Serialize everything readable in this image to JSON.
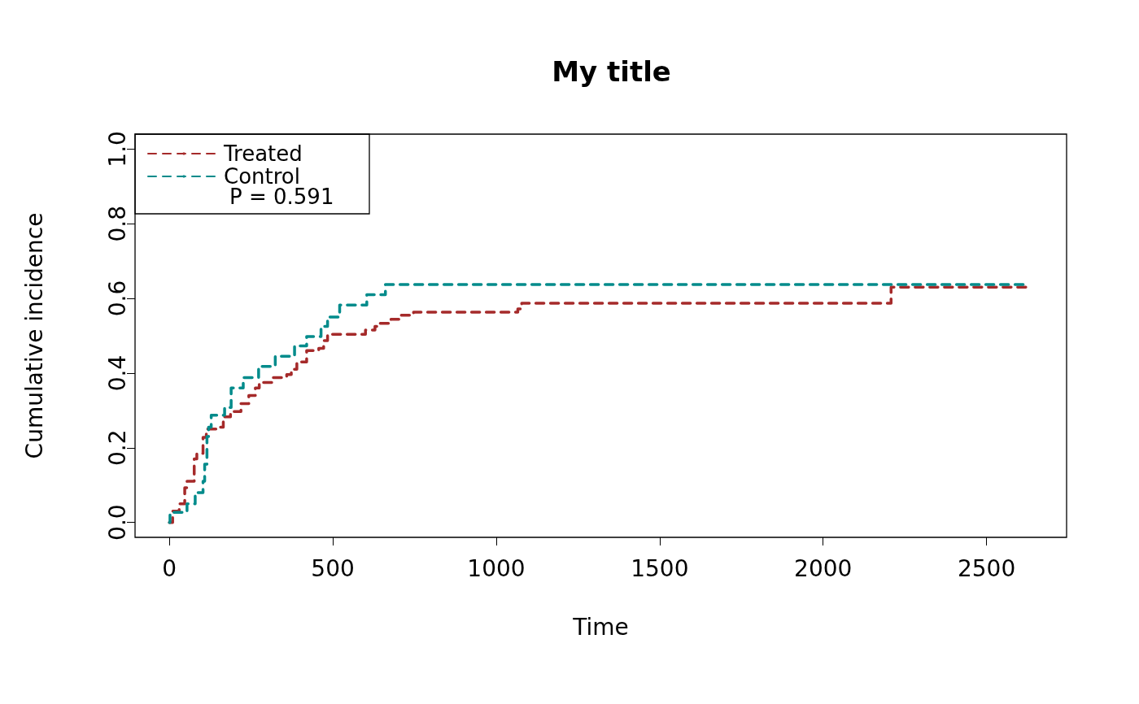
{
  "chart_data": {
    "type": "step",
    "title": "My title",
    "xlabel": "Time",
    "ylabel": "Cumulative incidence",
    "annotations": [
      "P = 0.591"
    ],
    "xlim": [
      -105,
      2745
    ],
    "xticks": [
      0,
      500,
      1000,
      1500,
      2000,
      2500
    ],
    "ylim": [
      -0.04,
      1.04
    ],
    "yticks": [
      {
        "value": 0,
        "label": "0.0"
      },
      {
        "value": 0.2,
        "label": "0.2"
      },
      {
        "value": 0.4,
        "label": "0.4"
      },
      {
        "value": 0.6,
        "label": "0.6"
      },
      {
        "value": 0.8,
        "label": "0.8"
      },
      {
        "value": 1,
        "label": "1.0"
      }
    ],
    "grid": false,
    "legend": "top left",
    "line_style": "dashed",
    "marker": "none",
    "series": [
      {
        "name": "Treated",
        "color": "#a52a2a",
        "x": [
          0,
          10,
          30,
          47,
          54,
          76,
          84,
          103,
          113,
          152,
          165,
          187,
          219,
          243,
          263,
          275,
          317,
          359,
          373,
          390,
          420,
          457,
          472,
          484,
          600,
          629,
          643,
          678,
          702,
          747,
          1066,
          1078,
          2208,
          2625
        ],
        "values": [
          0,
          0.03,
          0.05,
          0.093,
          0.11,
          0.17,
          0.185,
          0.228,
          0.25,
          0.255,
          0.283,
          0.297,
          0.318,
          0.34,
          0.36,
          0.375,
          0.388,
          0.396,
          0.41,
          0.43,
          0.46,
          0.466,
          0.487,
          0.504,
          0.515,
          0.525,
          0.533,
          0.544,
          0.555,
          0.563,
          0.572,
          0.587,
          0.63,
          0.63
        ]
      },
      {
        "name": "Control",
        "color": "#008b8b",
        "x": [
          0,
          2,
          54,
          79,
          103,
          108,
          115,
          120,
          128,
          169,
          189,
          226,
          273,
          324,
          383,
          420,
          464,
          484,
          521,
          604,
          661,
          2625
        ],
        "values": [
          0,
          0.027,
          0.05,
          0.08,
          0.11,
          0.156,
          0.23,
          0.255,
          0.287,
          0.308,
          0.36,
          0.388,
          0.418,
          0.445,
          0.473,
          0.498,
          0.525,
          0.55,
          0.582,
          0.61,
          0.637,
          0.637
        ]
      }
    ]
  }
}
